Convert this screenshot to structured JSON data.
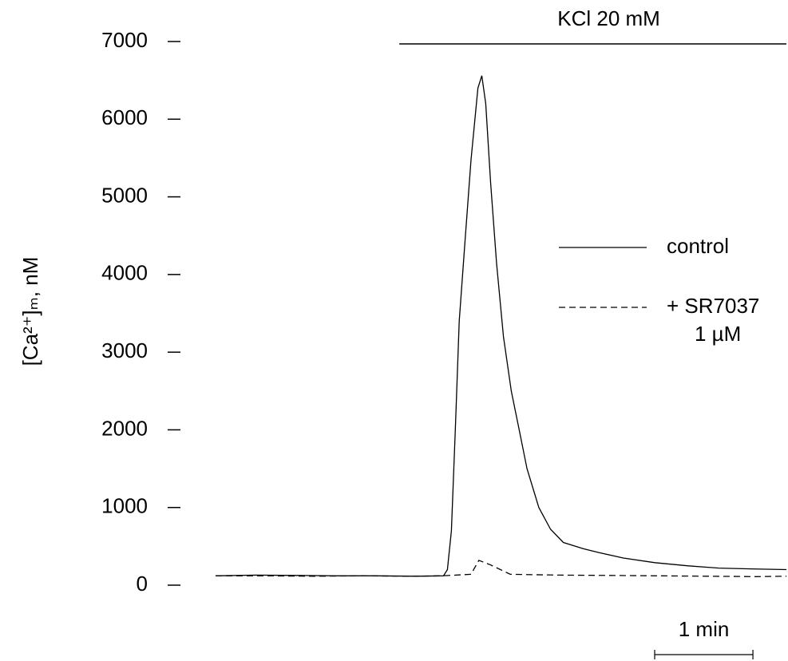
{
  "chart_data": {
    "type": "line",
    "ylabel": "[Ca²⁺]ₘ, nM",
    "ylim": [
      0,
      7000
    ],
    "yticks": [
      0,
      1000,
      2000,
      3000,
      4000,
      5000,
      6000,
      7000
    ],
    "xlim": [
      0,
      5.81
    ],
    "annotation": {
      "text": "KCl 20 mM",
      "start": 1.87,
      "end": 5.81
    },
    "scale_bar": {
      "label": "1 min",
      "value": 1
    },
    "series": [
      {
        "name": "control",
        "color": "#000000",
        "dash": false,
        "x": [
          0,
          0.41,
          0.81,
          1.22,
          1.63,
          2.03,
          2.32,
          2.36,
          2.4,
          2.44,
          2.48,
          2.54,
          2.6,
          2.67,
          2.71,
          2.75,
          2.8,
          2.86,
          2.93,
          3.01,
          3.09,
          3.17,
          3.29,
          3.41,
          3.54,
          3.74,
          3.9,
          4.15,
          4.47,
          4.8,
          5.12,
          5.45,
          5.81
        ],
        "values": [
          120,
          130,
          125,
          120,
          120,
          115,
          120,
          200,
          700,
          2000,
          3400,
          4450,
          5480,
          6400,
          6560,
          6200,
          5170,
          4140,
          3200,
          2500,
          2000,
          1500,
          1000,
          720,
          550,
          470,
          420,
          350,
          290,
          250,
          220,
          210,
          200
        ]
      },
      {
        "name": "+ SR7037\n1 µM",
        "color": "#000000",
        "dash": true,
        "x": [
          0,
          0.5,
          1.0,
          1.5,
          2.0,
          2.3,
          2.6,
          2.68,
          2.8,
          3.0,
          3.5,
          4.0,
          4.5,
          5.0,
          5.5,
          5.81
        ],
        "values": [
          120,
          120,
          115,
          120,
          115,
          120,
          140,
          320,
          260,
          140,
          130,
          125,
          120,
          115,
          110,
          115
        ]
      }
    ]
  }
}
